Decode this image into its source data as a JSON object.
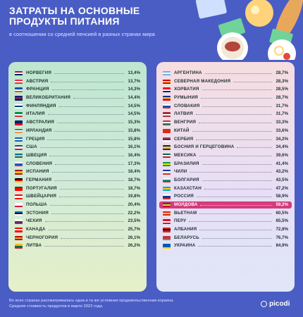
{
  "header": {
    "title": "ЗАТРАТЫ НА ОСНОВНЫЕ ПРОДУКТЫ ПИТАНИЯ",
    "subtitle": "в соотношении со средней пенсией в разных странах мира"
  },
  "footer": {
    "note_line1": "Во всех странах рассматривалась одна и та же условная продовольственная корзина.",
    "note_line2": "Средняя стоимость продуктов в марте 2022 года."
  },
  "logo": {
    "text": "picodi"
  },
  "colors": {
    "background": "#4a5dc4",
    "highlight": "#d63b7b"
  },
  "chart_data": {
    "type": "table",
    "unit": "%",
    "highlight": "МОЛДОВА",
    "left": [
      {
        "country": "НОРВЕГИЯ",
        "value": "13,4%",
        "flag": [
          "#ba0c2f",
          "#ffffff",
          "#00205b"
        ]
      },
      {
        "country": "АВСТРИЯ",
        "value": "13,7%",
        "flag": [
          "#ed2939",
          "#ffffff",
          "#ed2939"
        ]
      },
      {
        "country": "ФРАНЦИЯ",
        "value": "14,3%",
        "flag": [
          "#0055a4",
          "#ffffff",
          "#ef4135"
        ]
      },
      {
        "country": "ВЕЛИКОБРИТАНИЯ",
        "value": "14,4%",
        "flag": [
          "#012169",
          "#c8102e",
          "#012169"
        ]
      },
      {
        "country": "ФИНЛЯНДИЯ",
        "value": "14,5%",
        "flag": [
          "#ffffff",
          "#003580",
          "#ffffff"
        ]
      },
      {
        "country": "ИТАЛИЯ",
        "value": "14,5%",
        "flag": [
          "#009246",
          "#ffffff",
          "#ce2b37"
        ]
      },
      {
        "country": "АВСТРАЛИЯ",
        "value": "15,3%",
        "flag": [
          "#012169",
          "#012169",
          "#e4002b"
        ]
      },
      {
        "country": "ИРЛАНДИЯ",
        "value": "15,8%",
        "flag": [
          "#169b62",
          "#ffffff",
          "#ff883e"
        ]
      },
      {
        "country": "ГРЕЦИЯ",
        "value": "15,8%",
        "flag": [
          "#0d5eaf",
          "#ffffff",
          "#0d5eaf"
        ]
      },
      {
        "country": "США",
        "value": "16,1%",
        "flag": [
          "#3c3b6e",
          "#ffffff",
          "#b22234"
        ]
      },
      {
        "country": "ШВЕЦИЯ",
        "value": "16,4%",
        "flag": [
          "#006aa7",
          "#fecc00",
          "#006aa7"
        ]
      },
      {
        "country": "СЛОВЕНИЯ",
        "value": "17,3%",
        "flag": [
          "#ffffff",
          "#005ce5",
          "#ed1c24"
        ]
      },
      {
        "country": "ИСПАНИЯ",
        "value": "18,4%",
        "flag": [
          "#aa151b",
          "#f1bf00",
          "#aa151b"
        ]
      },
      {
        "country": "ГЕРМАНИЯ",
        "value": "18,7%",
        "flag": [
          "#000000",
          "#dd0000",
          "#ffce00"
        ]
      },
      {
        "country": "ПОРТУГАЛИЯ",
        "value": "18,7%",
        "flag": [
          "#006600",
          "#ff0000",
          "#ff0000"
        ]
      },
      {
        "country": "ШВЕЙЦАРИЯ",
        "value": "19,8%",
        "flag": [
          "#ff0000",
          "#ffffff",
          "#ff0000"
        ]
      },
      {
        "country": "ПОЛЬША",
        "value": "20,4%",
        "flag": [
          "#ffffff",
          "#ffffff",
          "#dc143c"
        ]
      },
      {
        "country": "ЭСТОНИЯ",
        "value": "22,2%",
        "flag": [
          "#0072ce",
          "#000000",
          "#ffffff"
        ]
      },
      {
        "country": "ЧЕХИЯ",
        "value": "23,5%",
        "flag": [
          "#ffffff",
          "#11457e",
          "#d7141a"
        ]
      },
      {
        "country": "КАНАДА",
        "value": "25,7%",
        "flag": [
          "#ff0000",
          "#ffffff",
          "#ff0000"
        ]
      },
      {
        "country": "ЧЕРНОГОРИЯ",
        "value": "26,1%",
        "flag": [
          "#c40308",
          "#d3ae3b",
          "#c40308"
        ]
      },
      {
        "country": "ЛИТВА",
        "value": "26,2%",
        "flag": [
          "#fdb913",
          "#006a44",
          "#c1272d"
        ]
      }
    ],
    "right": [
      {
        "country": "АРГЕНТИНА",
        "value": "28,7%",
        "flag": [
          "#74acdf",
          "#ffffff",
          "#74acdf"
        ]
      },
      {
        "country": "СЕВЕРНАЯ МАКЕДОНИЯ",
        "value": "28,3%",
        "flag": [
          "#d20000",
          "#ffe600",
          "#d20000"
        ]
      },
      {
        "country": "ХОРВАТИЯ",
        "value": "28,5%",
        "flag": [
          "#ff0000",
          "#ffffff",
          "#171796"
        ]
      },
      {
        "country": "РУМЫНИЯ",
        "value": "28,7%",
        "flag": [
          "#002b7f",
          "#fcd116",
          "#ce1126"
        ]
      },
      {
        "country": "СЛОВАКИЯ",
        "value": "31,7%",
        "flag": [
          "#ffffff",
          "#0b4ea2",
          "#ee1c25"
        ]
      },
      {
        "country": "ЛАТВИЯ",
        "value": "31,7%",
        "flag": [
          "#9e3039",
          "#ffffff",
          "#9e3039"
        ]
      },
      {
        "country": "ВЕНГРИЯ",
        "value": "33,3%",
        "flag": [
          "#cd2a3e",
          "#ffffff",
          "#436f4d"
        ]
      },
      {
        "country": "КИТАЙ",
        "value": "33,6%",
        "flag": [
          "#de2910",
          "#de2910",
          "#de2910"
        ]
      },
      {
        "country": "СЕРБИЯ",
        "value": "34,2%",
        "flag": [
          "#c6363c",
          "#0c4076",
          "#ffffff"
        ]
      },
      {
        "country": "БОСНИЯ И ГЕРЦЕГОВИНА",
        "value": "34,4%",
        "flag": [
          "#002395",
          "#fecb00",
          "#002395"
        ]
      },
      {
        "country": "МЕКСИКА",
        "value": "39,6%",
        "flag": [
          "#006847",
          "#ffffff",
          "#ce1126"
        ]
      },
      {
        "country": "БРАЗИЛИЯ",
        "value": "41,4%",
        "flag": [
          "#009c3b",
          "#ffdf00",
          "#009c3b"
        ]
      },
      {
        "country": "ЧИЛИ",
        "value": "43,2%",
        "flag": [
          "#0039a6",
          "#ffffff",
          "#d52b1e"
        ]
      },
      {
        "country": "БОЛГАРИЯ",
        "value": "43,5%",
        "flag": [
          "#ffffff",
          "#00966e",
          "#d62612"
        ]
      },
      {
        "country": "КАЗАХСТАН",
        "value": "47,2%",
        "flag": [
          "#00afca",
          "#fec50c",
          "#00afca"
        ]
      },
      {
        "country": "РОССИЯ",
        "value": "58,9%",
        "flag": [
          "#ffffff",
          "#0039a6",
          "#d52b1e"
        ]
      },
      {
        "country": "МОЛДОВА",
        "value": "59,2%",
        "flag": [
          "#0046ae",
          "#ffd200",
          "#cc092f"
        ]
      },
      {
        "country": "ВЬЕТНАМ",
        "value": "60,5%",
        "flag": [
          "#da251d",
          "#ffcd00",
          "#da251d"
        ]
      },
      {
        "country": "ПЕРУ",
        "value": "65,5%",
        "flag": [
          "#d91023",
          "#ffffff",
          "#d91023"
        ]
      },
      {
        "country": "АЛБАНИЯ",
        "value": "72,8%",
        "flag": [
          "#e41e20",
          "#000000",
          "#e41e20"
        ]
      },
      {
        "country": "БЕЛАРУСЬ",
        "value": "76,7%",
        "flag": [
          "#c8313e",
          "#c8313e",
          "#4aa657"
        ]
      },
      {
        "country": "УКРАИНА",
        "value": "84,9%",
        "flag": [
          "#0057b7",
          "#0057b7",
          "#ffd700"
        ]
      }
    ]
  }
}
